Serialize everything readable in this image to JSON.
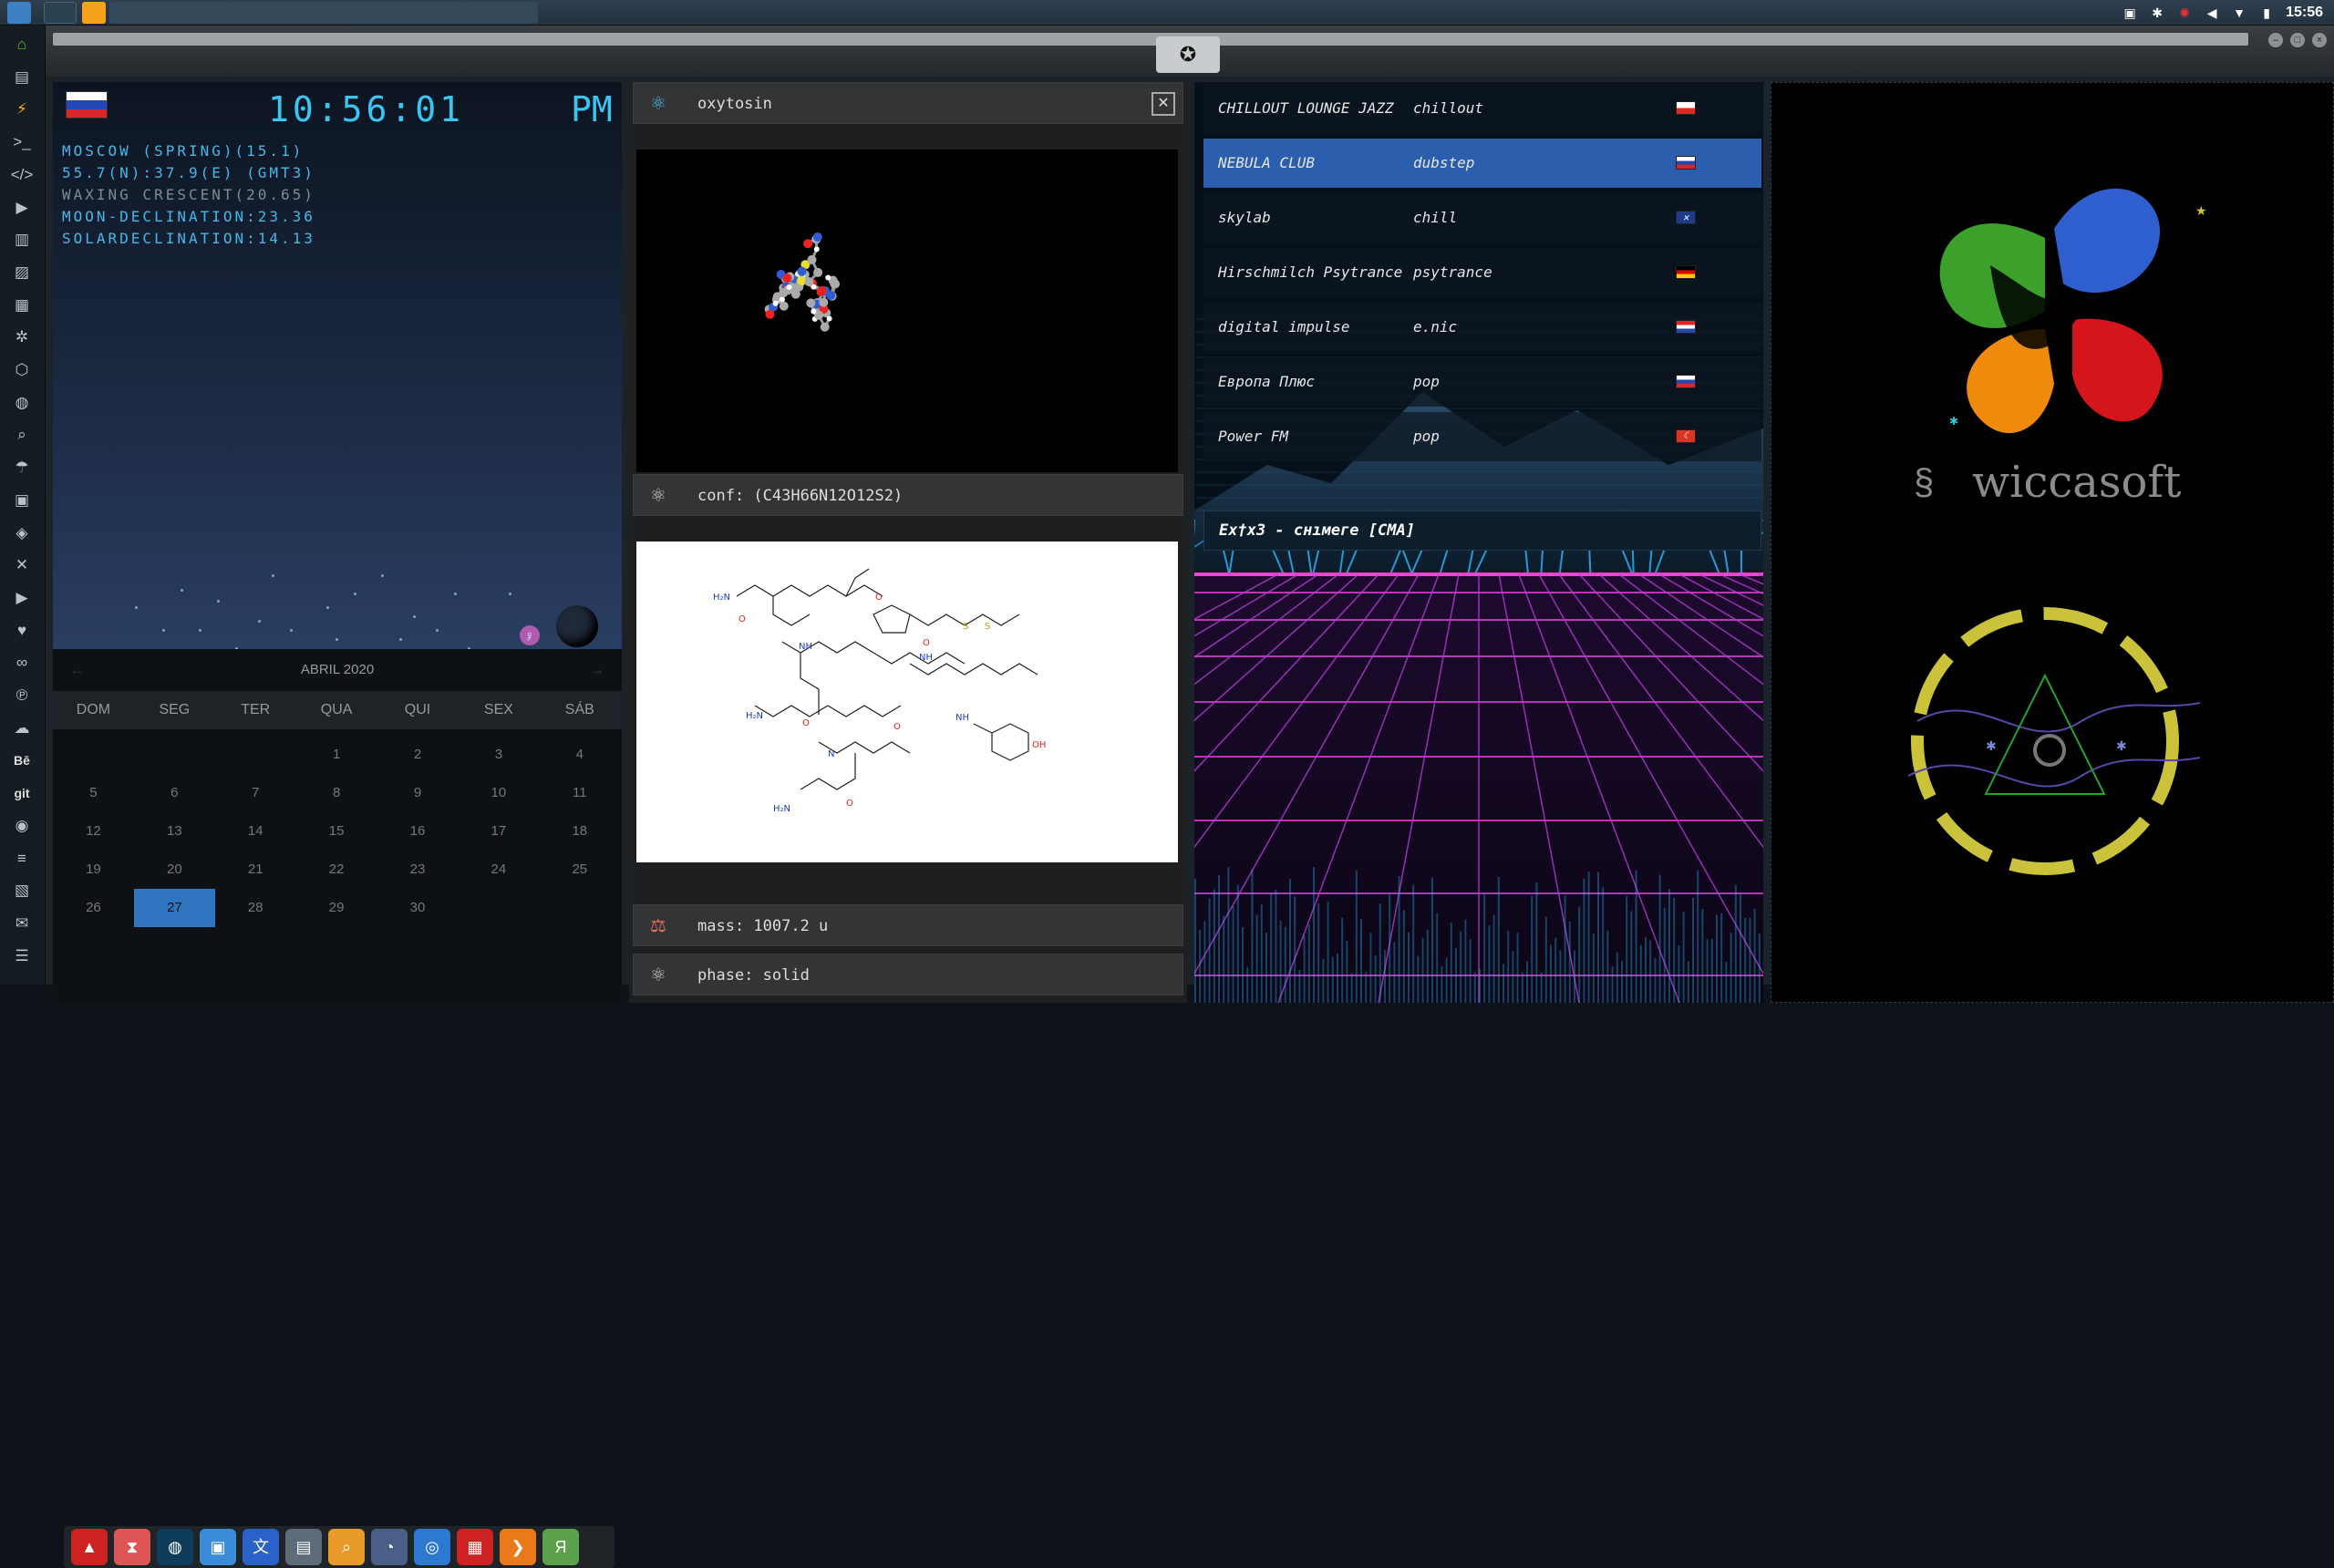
{
  "system": {
    "clock": "15:56",
    "tray_icons": [
      "photo-icon",
      "bluetooth-icon",
      "bug-icon",
      "volume-icon",
      "wifi-icon",
      "battery-icon"
    ]
  },
  "sidebar_icons": [
    "home-icon",
    "document-icon",
    "bolt-icon",
    "terminal-icon",
    "code-icon",
    "play-icon",
    "files-icon",
    "image-icon",
    "newspaper-icon",
    "settings-icon",
    "hexagon-icon",
    "globe-icon",
    "search-icon",
    "umbrella-icon",
    "contact-icon",
    "tag-icon",
    "shuffle-icon",
    "youtube-icon",
    "heart-icon",
    "infinity-icon",
    "pinterest-icon",
    "cloud-icon",
    "behance-icon",
    "git-icon",
    "github-icon",
    "stack-icon",
    "map-icon",
    "mail-icon",
    "server-icon"
  ],
  "world_clock": {
    "time": "10:56:01",
    "ampm": "PM",
    "info": [
      "MOSCOW (SPRING)(15.1)",
      "55.7(N):37.9(E) (GMT3)",
      "WAXING CRESCENT(20.65)",
      "MOON-DECLINATION:23.36",
      "SOLARDECLINATION:14.13"
    ]
  },
  "calendar": {
    "month": "ABRIL 2020",
    "weekdays": [
      "DOM",
      "SEG",
      "TER",
      "QUA",
      "QUI",
      "SEX",
      "SÁB"
    ],
    "weeks": [
      [
        "",
        "",
        "",
        "1",
        "2",
        "3",
        "4"
      ],
      [
        "5",
        "6",
        "7",
        "8",
        "9",
        "10",
        "11"
      ],
      [
        "12",
        "13",
        "14",
        "15",
        "16",
        "17",
        "18"
      ],
      [
        "19",
        "20",
        "21",
        "22",
        "23",
        "24",
        "25"
      ],
      [
        "26",
        "27",
        "28",
        "29",
        "30",
        "",
        ""
      ]
    ],
    "selected": "27"
  },
  "app_dock": [
    "red-triangle-icon",
    "hourglass-icon",
    "globe-app-icon",
    "photos-icon",
    "translate-icon",
    "browser-icon",
    "search-app-icon",
    "clock-app-icon",
    "web-icon",
    "calendar-app-icon",
    "arrow-app-icon",
    "yandex-icon"
  ],
  "molecule": {
    "name": "oxytosin",
    "conf": "conf: (C43H66N12O12S2)",
    "mass": "mass: 1007.2 u",
    "phase": "phase: solid"
  },
  "radio": {
    "stations": [
      {
        "name": "CHILLOUT LOUNGE JAZZ",
        "genre": "chillout",
        "flag": "pl"
      },
      {
        "name": "NEBULA CLUB",
        "genre": "dubstep",
        "flag": "ru",
        "active": true
      },
      {
        "name": "skylab",
        "genre": "chill",
        "flag": "uk"
      },
      {
        "name": "Hirschmilch Psytrance",
        "genre": "psytrance",
        "flag": "de"
      },
      {
        "name": "digital impulse",
        "genre": "e.nic",
        "flag": "hr"
      },
      {
        "name": "Европа Плюс",
        "genre": "pop",
        "flag": "ru"
      },
      {
        "name": "Power FM",
        "genre": "pop",
        "flag": "tr"
      }
    ],
    "now_playing": "Ex†x3 - снıмеге [CMA]"
  },
  "brand": {
    "name": "wiccasoft"
  },
  "colors": {
    "accent_blue": "#38c6f2",
    "selected_day": "#2f75bf",
    "active_station": "#2b5fae",
    "emblem_yellow": "#c9c23a"
  }
}
